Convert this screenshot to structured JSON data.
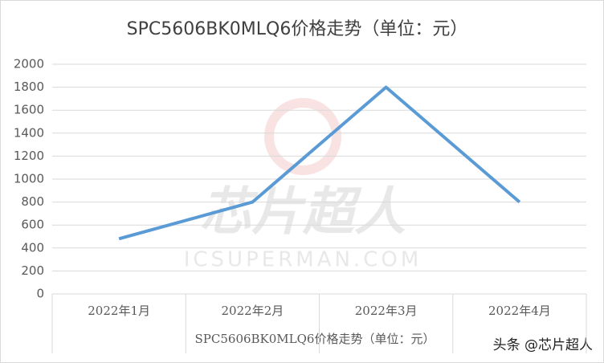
{
  "chart_data": {
    "type": "line",
    "title": "SPC5606BK0MLQ6价格走势（单位：元）",
    "x_label": "SPC5606BK0MLQ6价格走势（单位：元）",
    "categories": [
      "2022年1月",
      "2022年2月",
      "2022年3月",
      "2022年4月"
    ],
    "series": [
      {
        "name": "SPC5606BK0MLQ6价格走势（单位：元）",
        "color": "#5b9bd5",
        "values": [
          480,
          800,
          1800,
          800
        ]
      }
    ],
    "ylim": [
      0,
      2000
    ],
    "yticks": [
      0,
      200,
      400,
      600,
      800,
      1000,
      1200,
      1400,
      1600,
      1800,
      2000
    ],
    "grid": true
  },
  "watermark": {
    "logo_text": "芯片超人",
    "url": "ICSUPERMAN.COM"
  },
  "credit": "头条 @芯片超人"
}
